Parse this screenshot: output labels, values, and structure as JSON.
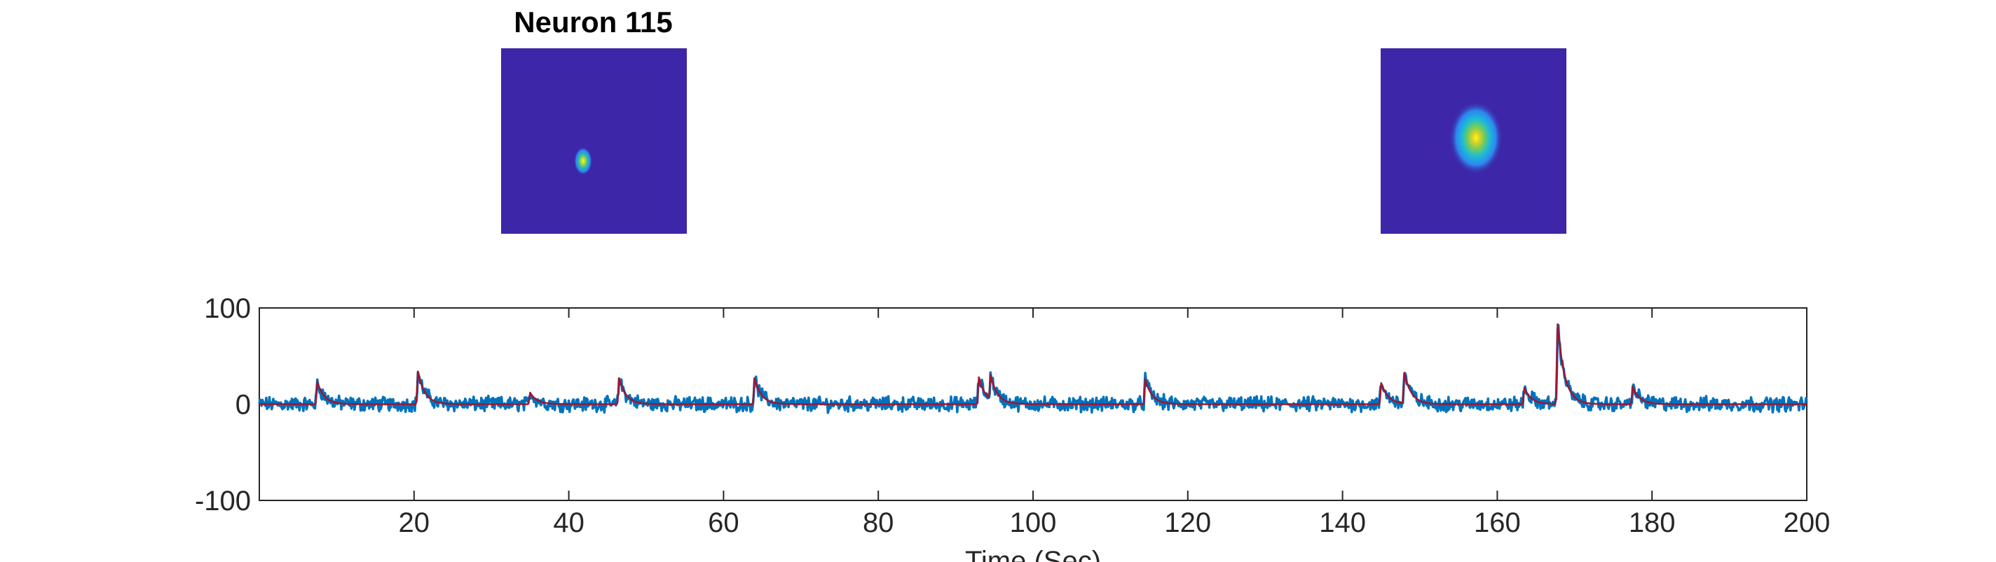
{
  "panels": {
    "left_title": "Neuron 115",
    "background_color": "#3d27a8"
  },
  "chart_data": {
    "type": "line",
    "title": "",
    "xlabel": "Time (Sec)",
    "ylabel": "",
    "xlim": [
      0,
      200
    ],
    "ylim": [
      -100,
      100
    ],
    "xticks": [
      20,
      40,
      60,
      80,
      100,
      120,
      140,
      160,
      180,
      200
    ],
    "xtick_labels": [
      "20",
      "40",
      "60",
      "80",
      "100",
      "120",
      "140",
      "160",
      "180",
      "200"
    ],
    "yticks": [
      -100,
      0,
      100
    ],
    "ytick_labels": [
      "-100",
      "0",
      "100"
    ],
    "grid": false,
    "series": [
      {
        "role": "raw trace",
        "color": "#0072bd",
        "baseline": 0,
        "noise_amplitude": 6,
        "peaks": [
          {
            "t": 7.5,
            "amp": 23
          },
          {
            "t": 20.5,
            "amp": 34
          },
          {
            "t": 35.0,
            "amp": 12
          },
          {
            "t": 46.5,
            "amp": 27
          },
          {
            "t": 64.0,
            "amp": 27
          },
          {
            "t": 93.0,
            "amp": 28
          },
          {
            "t": 94.5,
            "amp": 25
          },
          {
            "t": 114.5,
            "amp": 26
          },
          {
            "t": 145.0,
            "amp": 22
          },
          {
            "t": 148.0,
            "amp": 32
          },
          {
            "t": 163.5,
            "amp": 17
          },
          {
            "t": 167.8,
            "amp": 83
          },
          {
            "t": 177.5,
            "amp": 18
          }
        ]
      },
      {
        "role": "fitted trace",
        "color": "#a2142f"
      }
    ]
  }
}
